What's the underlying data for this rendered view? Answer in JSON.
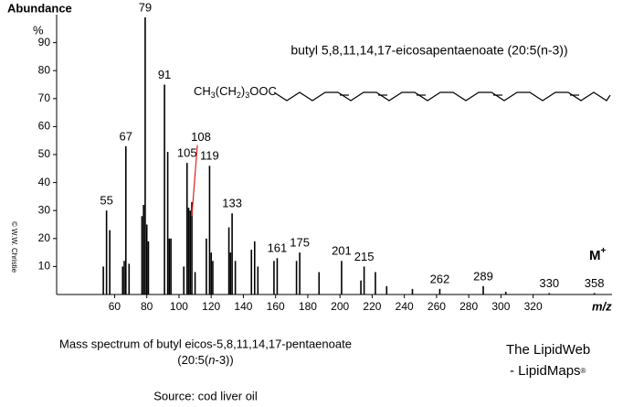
{
  "chart_data": {
    "type": "spectrum",
    "title": "butyl 5,8,11,14,17-eicosapentaenoate  (20:5(n-3))",
    "title_color": "#1f1fd0",
    "structure": {
      "parts": [
        "CH",
        "3",
        "(CH",
        "2",
        ")",
        "3",
        "OOC"
      ]
    },
    "y_label": "Abundance",
    "y_unit": "%",
    "x_label": "m/z",
    "molecular_ion": {
      "text": "M",
      "sup": "+"
    },
    "copyright": "© W.W. Christie",
    "x": [
      53,
      55,
      57,
      65,
      66,
      67,
      69,
      77,
      78,
      79,
      80,
      81,
      91,
      93,
      94,
      95,
      103,
      105,
      106,
      107,
      108,
      110,
      117,
      119,
      120,
      121,
      131,
      132,
      133,
      135,
      145,
      147,
      149,
      159,
      161,
      173,
      175,
      187,
      201,
      213,
      215,
      222,
      229,
      245,
      262,
      289,
      303,
      330,
      358
    ],
    "values": [
      10,
      30,
      23,
      10,
      12,
      53,
      11,
      28,
      32,
      99,
      25,
      19,
      75,
      51,
      20,
      20,
      10,
      47,
      31,
      30,
      33,
      8,
      20,
      46,
      15,
      12,
      24,
      15,
      29,
      12,
      16,
      19,
      10,
      12,
      13,
      12,
      15,
      8,
      12,
      5,
      10,
      8,
      3,
      2,
      2,
      3,
      1,
      0.5,
      0.5
    ],
    "labeled": [
      false,
      true,
      false,
      false,
      false,
      true,
      false,
      false,
      false,
      true,
      false,
      false,
      true,
      false,
      false,
      false,
      false,
      true,
      false,
      false,
      true,
      false,
      false,
      true,
      false,
      false,
      false,
      false,
      true,
      false,
      false,
      false,
      false,
      false,
      true,
      false,
      true,
      false,
      true,
      false,
      true,
      false,
      false,
      false,
      true,
      true,
      false,
      true,
      true
    ],
    "color": "#000000",
    "callout_color": "#e02020",
    "xlim": [
      24,
      369
    ],
    "xticks": [
      60,
      80,
      100,
      120,
      140,
      160,
      180,
      200,
      220,
      240,
      260,
      280,
      300,
      320
    ],
    "ylim": [
      0,
      100
    ],
    "yticks": [
      10,
      20,
      30,
      40,
      50,
      60,
      70,
      80,
      90
    ]
  },
  "caption": {
    "line1": "Mass spectrum of butyl eicos-5,8,11,14,17-pentaenoate",
    "line2_before": "(20:5(",
    "line2_italic": "n",
    "line2_after": "-3))",
    "source": "Source: cod liver oil"
  },
  "brand": {
    "line1": "The LipidWeb",
    "line2": "- LipidMaps",
    "mark": "®"
  }
}
